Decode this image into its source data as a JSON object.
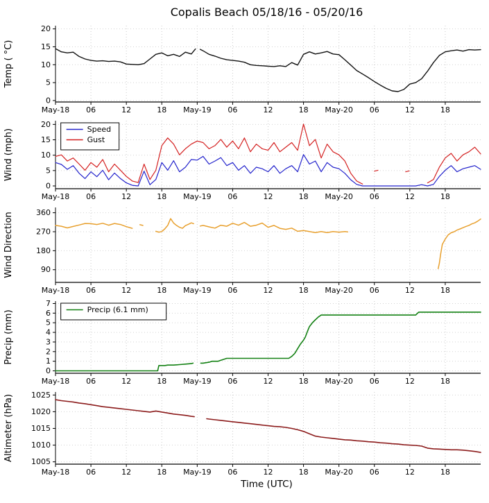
{
  "title": "Copalis Beach 05/18/16 - 05/20/16",
  "xlabel": "Time (UTC)",
  "chart_data": {
    "type": "line",
    "layout": "5 stacked time-series panels, shared x axis, vertical and horizontal dotted gridlines",
    "x_axis": {
      "min": 0,
      "max": 72,
      "unit": "hours since 2016-05-18 00:00 UTC",
      "ticks": [
        0,
        6,
        12,
        18,
        24,
        30,
        36,
        42,
        48,
        54,
        60,
        66
      ],
      "tick_labels": [
        "May-18",
        "06",
        "12",
        "18",
        "May-19",
        "06",
        "12",
        "18",
        "May-20",
        "06",
        "12",
        "18"
      ]
    },
    "panels": [
      {
        "name": "temp",
        "ylabel": "Temp ( °C)",
        "ylim": [
          -0.4,
          20.9
        ],
        "yticks": [
          0,
          5,
          10,
          15,
          20
        ],
        "series": [
          {
            "name": "Temp",
            "color": "#111111",
            "width": 1.4,
            "x": [
              0,
              1,
              2,
              3,
              4,
              5,
              6,
              7,
              8,
              9,
              10,
              11,
              12,
              13,
              14,
              15,
              16,
              17,
              18,
              19,
              20,
              21,
              22,
              23,
              23.7,
              24.1,
              24.5,
              25,
              26,
              27,
              28,
              29,
              30,
              31,
              32,
              33,
              34,
              35,
              36,
              37,
              38,
              39,
              40,
              41,
              42,
              43,
              44,
              45,
              46,
              47,
              48,
              49,
              50,
              51,
              52,
              53,
              54,
              55,
              56,
              57,
              58,
              59,
              60,
              61,
              62,
              63,
              64,
              65,
              66,
              67,
              68,
              69,
              70,
              71,
              72
            ],
            "y": [
              14.5,
              13.6,
              13.3,
              13.5,
              12.3,
              11.6,
              11.2,
              11.0,
              11.1,
              10.9,
              11.0,
              10.8,
              10.2,
              10.1,
              10.0,
              10.3,
              11.6,
              12.9,
              13.3,
              12.5,
              12.9,
              12.3,
              13.5,
              13.0,
              14.4,
              null,
              14.3,
              13.9,
              12.9,
              12.4,
              11.8,
              11.4,
              11.2,
              11.0,
              10.7,
              10.0,
              9.8,
              9.7,
              9.6,
              9.5,
              9.7,
              9.5,
              10.6,
              9.9,
              12.9,
              13.6,
              13.0,
              13.3,
              13.7,
              13.0,
              12.8,
              11.4,
              9.9,
              8.4,
              7.4,
              6.4,
              5.3,
              4.3,
              3.4,
              2.7,
              2.5,
              3.1,
              4.6,
              5.0,
              6.1,
              8.2,
              10.6,
              12.6,
              13.6,
              13.9,
              14.1,
              13.8,
              14.2,
              14.1,
              14.2
            ]
          }
        ]
      },
      {
        "name": "wind",
        "ylabel": "Wind (mph)",
        "ylim": [
          -0.9,
          21.2
        ],
        "yticks": [
          0,
          5,
          10,
          15,
          20
        ],
        "legend": {
          "items": [
            {
              "label": "Speed",
              "color": "#2222cc"
            },
            {
              "label": "Gust",
              "color": "#d42020"
            }
          ]
        },
        "series": [
          {
            "name": "Speed",
            "color": "#2222cc",
            "width": 1.2,
            "x": [
              0,
              1,
              2,
              3,
              4,
              5,
              6,
              7,
              8,
              9,
              10,
              11,
              12,
              13,
              14,
              15,
              16,
              17,
              18,
              19,
              20,
              21,
              22,
              23,
              24,
              25,
              26,
              27,
              28,
              29,
              30,
              31,
              32,
              33,
              34,
              35,
              36,
              37,
              38,
              39,
              40,
              41,
              42,
              43,
              44,
              45,
              46,
              47,
              48,
              49,
              50,
              51,
              52,
              53,
              54,
              55,
              56,
              57,
              58,
              59,
              60,
              61,
              62,
              63,
              64,
              65,
              66,
              67,
              68,
              69,
              70,
              71,
              72
            ],
            "y": [
              7.6,
              7.0,
              5.4,
              6.6,
              4.1,
              2.4,
              4.6,
              3.0,
              5.1,
              2.0,
              4.2,
              2.4,
              1.0,
              0.2,
              0.0,
              4.8,
              0.4,
              2.1,
              7.6,
              5.1,
              8.2,
              4.6,
              6.1,
              8.6,
              8.4,
              9.6,
              7.1,
              8.1,
              9.2,
              6.6,
              7.6,
              5.1,
              6.6,
              4.1,
              6.1,
              5.6,
              4.6,
              6.6,
              4.1,
              5.6,
              6.6,
              4.6,
              10.2,
              7.1,
              8.1,
              4.6,
              7.6,
              6.1,
              5.6,
              4.1,
              2.0,
              0.5,
              0.0,
              0.0,
              0.0,
              0.0,
              0.0,
              0.0,
              0.0,
              0.0,
              0.0,
              0.0,
              0.4,
              0.0,
              0.5,
              3.1,
              5.1,
              6.6,
              4.6,
              5.6,
              6.1,
              6.6,
              5.4
            ]
          },
          {
            "name": "Gust",
            "color": "#d42020",
            "width": 1.2,
            "x": [
              0,
              1,
              2,
              3,
              4,
              5,
              6,
              7,
              8,
              9,
              10,
              11,
              12,
              13,
              14,
              15,
              16,
              17,
              18,
              19,
              20,
              21,
              22,
              23,
              24,
              25,
              26,
              27,
              28,
              29,
              30,
              31,
              32,
              33,
              34,
              35,
              36,
              37,
              38,
              39,
              40,
              41,
              42,
              43,
              44,
              45,
              46,
              47,
              48,
              49,
              50,
              51,
              52,
              53,
              54,
              54.6,
              55.2,
              59.3,
              59.9,
              60.4,
              63,
              64,
              65,
              66,
              67,
              68,
              69,
              70,
              71,
              72
            ],
            "y": [
              9.6,
              10.1,
              8.1,
              9.1,
              7.1,
              5.1,
              7.6,
              6.1,
              8.6,
              4.6,
              7.1,
              5.1,
              3.1,
              1.6,
              1.1,
              7.1,
              2.1,
              5.1,
              13.1,
              15.6,
              13.6,
              10.1,
              12.1,
              13.6,
              14.6,
              14.1,
              12.1,
              13.1,
              15.1,
              12.6,
              14.6,
              12.1,
              15.6,
              11.1,
              13.6,
              12.1,
              11.6,
              14.1,
              11.1,
              12.6,
              14.1,
              11.6,
              20.1,
              13.1,
              15.1,
              9.1,
              13.6,
              11.1,
              10.1,
              8.1,
              4.1,
              1.6,
              0.6,
              null,
              4.8,
              5.1,
              null,
              4.6,
              4.9,
              null,
              1.0,
              2.1,
              6.1,
              9.1,
              10.6,
              8.1,
              10.1,
              11.1,
              12.6,
              10.4
            ]
          }
        ]
      },
      {
        "name": "winddir",
        "ylabel": "Wind Direction",
        "ylim": [
          30,
          385
        ],
        "yticks": [
          90,
          180,
          270,
          360
        ],
        "series": [
          {
            "name": "Wind Direction",
            "color": "#e8a02e",
            "width": 1.5,
            "x": [
              0,
              1,
              2,
              3,
              4,
              5,
              6,
              7,
              8,
              9,
              10,
              11,
              12,
              13,
              13.5,
              14.3,
              14.8,
              15.2,
              17,
              17.5,
              18,
              18.5,
              19,
              19.5,
              20,
              20.5,
              21,
              21.5,
              22,
              22.5,
              23,
              23.4,
              23.7,
              24.5,
              25,
              26,
              27,
              28,
              29,
              30,
              31,
              32,
              33,
              34,
              35,
              36,
              37,
              38,
              39,
              40,
              41,
              42,
              43,
              44,
              45,
              46,
              47,
              48,
              49,
              49.5,
              50,
              64.8,
              65,
              65.2,
              65.5,
              66,
              66.5,
              67,
              67.5,
              68,
              68.5,
              69,
              69.5,
              70,
              70.5,
              71,
              71.5,
              72
            ],
            "y": [
              300,
              296,
              288,
              295,
              302,
              309,
              308,
              304,
              310,
              301,
              309,
              304,
              294,
              286,
              null,
              303,
              300,
              null,
              272,
              268,
              271,
              283,
              300,
              332,
              311,
              300,
              291,
              286,
              299,
              305,
              312,
              308,
              null,
              297,
              300,
              293,
              287,
              301,
              296,
              310,
              301,
              314,
              296,
              301,
              311,
              291,
              300,
              286,
              281,
              287,
              272,
              276,
              271,
              266,
              271,
              266,
              271,
              268,
              271,
              269,
              null,
              95,
              120,
              160,
              210,
              235,
              255,
              265,
              270,
              278,
              283,
              289,
              295,
              300,
              307,
              312,
              320,
              330
            ]
          }
        ]
      },
      {
        "name": "precip",
        "ylabel": "Precip (mm)",
        "ylim": [
          -0.25,
          7.25
        ],
        "yticks": [
          0,
          1,
          2,
          3,
          4,
          5,
          6,
          7
        ],
        "legend": {
          "items": [
            {
              "label": "Precip (6.1 mm)",
              "color": "#128012"
            }
          ]
        },
        "series": [
          {
            "name": "Precip",
            "color": "#128012",
            "width": 1.6,
            "x": [
              0,
              17.3,
              17.5,
              18.5,
              19,
              20,
              21,
              22,
              23,
              23.3,
              23.6,
              24.6,
              25,
              26,
              26.5,
              27.5,
              28,
              29,
              30,
              39.5,
              40,
              40.5,
              41,
              41.5,
              42,
              42.3,
              42.6,
              43,
              43.5,
              44,
              44.5,
              45,
              46,
              61,
              61.5,
              72
            ],
            "y": [
              0,
              0,
              0.55,
              0.55,
              0.6,
              0.6,
              0.65,
              0.7,
              0.75,
              0.8,
              null,
              0.8,
              0.8,
              0.9,
              1.0,
              1.0,
              1.1,
              1.3,
              1.3,
              1.3,
              1.5,
              1.8,
              2.3,
              2.8,
              3.2,
              3.5,
              4.0,
              4.6,
              5.0,
              5.3,
              5.6,
              5.8,
              5.8,
              5.8,
              6.1,
              6.1
            ]
          }
        ]
      },
      {
        "name": "altimeter",
        "ylabel": "Altimeter (hPa)",
        "ylim": [
          1004.3,
          1025.9
        ],
        "yticks": [
          1005,
          1010,
          1015,
          1020,
          1025
        ],
        "series": [
          {
            "name": "Altimeter",
            "color": "#8b1a1a",
            "width": 1.6,
            "x": [
              0,
              1,
              2,
              3,
              4,
              5,
              6,
              7,
              8,
              9,
              10,
              11,
              12,
              13,
              14,
              15,
              16,
              17,
              18,
              19,
              20,
              21,
              22,
              23,
              23.5,
              24.2,
              25.6,
              26,
              27,
              28,
              29,
              30,
              31,
              32,
              33,
              34,
              35,
              36,
              37,
              38,
              39,
              40,
              41,
              42,
              43,
              44,
              45,
              46,
              47,
              48,
              49,
              50,
              51,
              52,
              53,
              54,
              55,
              56,
              57,
              58,
              59,
              60,
              61,
              62,
              63,
              64,
              65,
              66,
              67,
              68,
              69,
              70,
              71,
              72
            ],
            "y": [
              1023.6,
              1023.3,
              1023.1,
              1022.9,
              1022.6,
              1022.4,
              1022.1,
              1021.8,
              1021.5,
              1021.3,
              1021.1,
              1020.9,
              1020.7,
              1020.5,
              1020.3,
              1020.1,
              1019.9,
              1020.2,
              1019.9,
              1019.6,
              1019.3,
              1019.1,
              1018.9,
              1018.6,
              1018.5,
              null,
              1017.9,
              1017.8,
              1017.6,
              1017.4,
              1017.2,
              1017.0,
              1016.8,
              1016.6,
              1016.4,
              1016.2,
              1016.0,
              1015.8,
              1015.6,
              1015.5,
              1015.3,
              1015.0,
              1014.6,
              1014.1,
              1013.4,
              1012.7,
              1012.4,
              1012.2,
              1012.0,
              1011.8,
              1011.6,
              1011.5,
              1011.3,
              1011.2,
              1011.0,
              1010.9,
              1010.7,
              1010.6,
              1010.4,
              1010.3,
              1010.1,
              1010.0,
              1009.9,
              1009.7,
              1009.1,
              1008.9,
              1008.8,
              1008.7,
              1008.6,
              1008.6,
              1008.5,
              1008.3,
              1008.1,
              1007.8
            ]
          }
        ]
      }
    ]
  }
}
